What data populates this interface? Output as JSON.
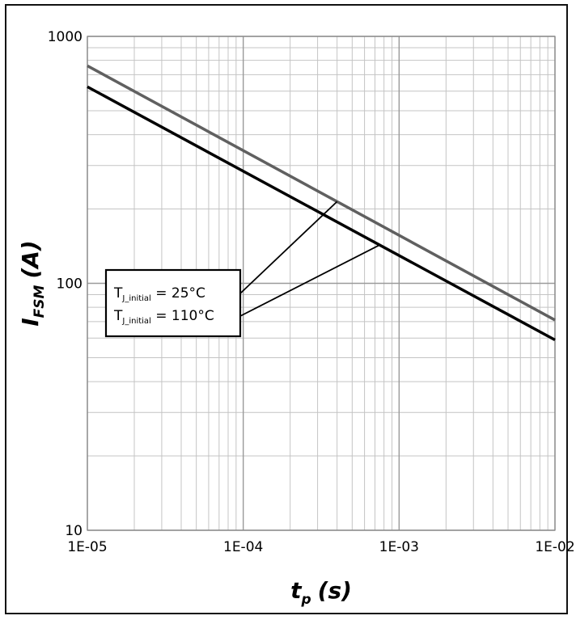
{
  "chart_data": {
    "type": "line",
    "x_scale": "log",
    "y_scale": "log",
    "xlim": [
      1e-05,
      0.01
    ],
    "ylim": [
      10,
      1000
    ],
    "x_ticks": [
      "1E-05",
      "1E-04",
      "1E-03",
      "1E-02"
    ],
    "y_ticks": [
      "1000",
      "100",
      "10"
    ],
    "xlabel": {
      "main": "t",
      "sub": "p",
      "unit": "(s)"
    },
    "ylabel": {
      "main": "I",
      "sub": "FSM",
      "unit": "(A)"
    },
    "grid": true,
    "series": [
      {
        "name": "T_J_initial = 25°C",
        "color": "#606060",
        "x": [
          1e-05,
          0.01
        ],
        "y": [
          760,
          71
        ]
      },
      {
        "name": "T_J_initial = 110°C",
        "color": "#000000",
        "x": [
          1e-05,
          0.01
        ],
        "y": [
          625,
          59
        ]
      }
    ],
    "legend": {
      "placement": "center-left",
      "entries": [
        {
          "main": "T",
          "sub": "J_initial",
          "rest": " = 25°C",
          "series": 0,
          "leader_x": 0.0004
        },
        {
          "main": "T",
          "sub": "J_initial",
          "rest": " = 110°C",
          "series": 1,
          "leader_x": 0.00075
        }
      ]
    }
  }
}
